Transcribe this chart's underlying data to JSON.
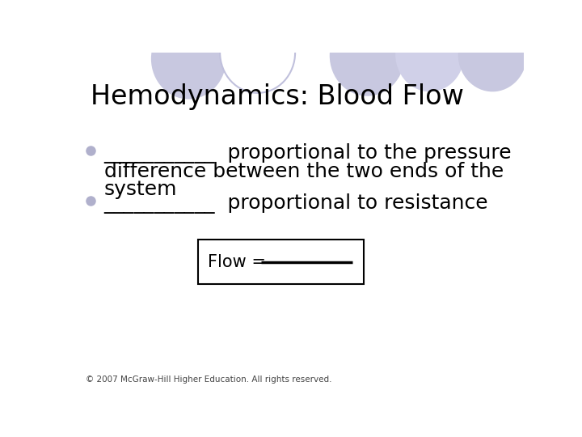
{
  "title": "Hemodynamics: Blood Flow",
  "title_fontsize": 24,
  "line1": "___________  proportional to the pressure",
  "line2": "difference between the two ends of the",
  "line3": "system",
  "line4": "___________  proportional to resistance",
  "box_label": "Flow = ",
  "footnote": "© 2007 McGraw-Hill Higher Education. All rights reserved.",
  "bg_color": "#ffffff",
  "text_color": "#000000",
  "bullet_color": "#b0b0cc",
  "circle_fill_1": "#c8c8e0",
  "circle_fill_2": "#ffffff",
  "circle_fill_3": "#d8d8ec",
  "circle_fill_4": "#d0d0e8",
  "circle_fill_5": "#c8c8e0",
  "line_fontsize": 18
}
